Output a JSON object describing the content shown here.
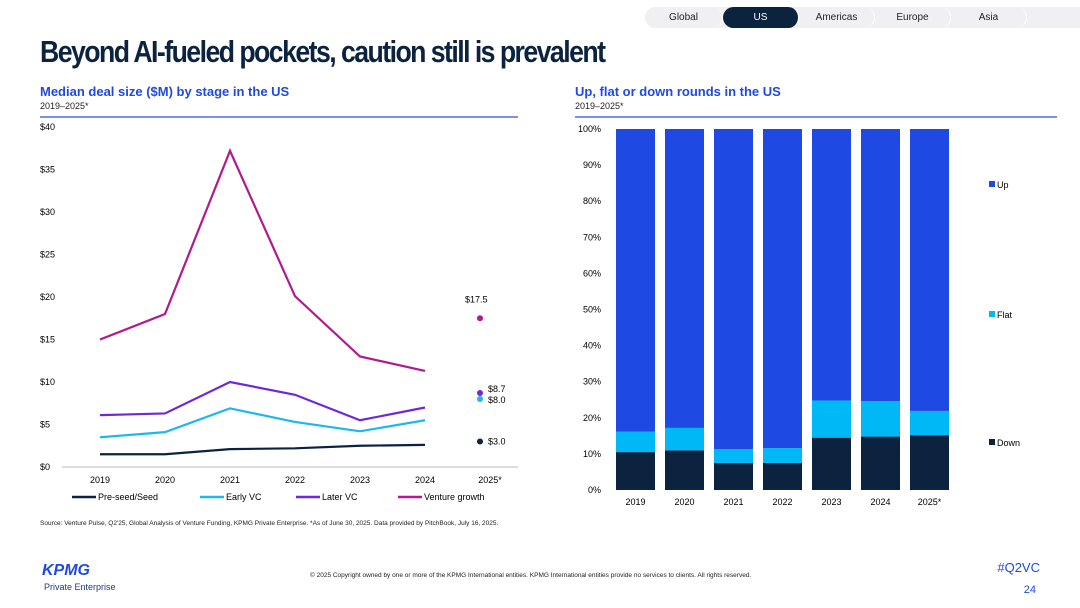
{
  "tabs": [
    {
      "label": "Global",
      "active": false
    },
    {
      "label": "US",
      "active": true
    },
    {
      "label": "Americas",
      "active": false
    },
    {
      "label": "Europe",
      "active": false
    },
    {
      "label": "Asia",
      "active": false
    }
  ],
  "title": "Beyond AI-fueled pockets, caution still is prevalent",
  "left": {
    "title": "Median deal size ($M) by stage in the US",
    "subtitle": "2019–2025*"
  },
  "right": {
    "title": "Up, flat or down rounds in the US",
    "subtitle": "2019–2025*"
  },
  "colors": {
    "preseed": "#0c2340",
    "early": "#1ab8ef",
    "later": "#6d28d9",
    "growth": "#b0198f",
    "up": "#1e49e2",
    "flat": "#00b8f5",
    "down": "#0c2340"
  },
  "chart_data": [
    {
      "type": "line",
      "title": "Median deal size ($M) by stage in the US",
      "ylim": [
        0,
        40
      ],
      "yticks": [
        "$0",
        "$5",
        "$10",
        "$15",
        "$20",
        "$25",
        "$30",
        "$35",
        "$40"
      ],
      "categories": [
        "2019",
        "2020",
        "2021",
        "2022",
        "2023",
        "2024",
        "2025*"
      ],
      "series": [
        {
          "name": "Pre-seed/Seed",
          "values": [
            1.5,
            1.5,
            2.1,
            2.2,
            2.5,
            2.6,
            3.0
          ],
          "label_2025": "$3.0"
        },
        {
          "name": "Early VC",
          "values": [
            3.5,
            4.1,
            6.9,
            5.3,
            4.2,
            5.5,
            8.0
          ],
          "label_2025": "$8.0"
        },
        {
          "name": "Later VC",
          "values": [
            6.1,
            6.3,
            10.0,
            8.5,
            5.5,
            7.0,
            8.7
          ],
          "label_2025": "$8.7"
        },
        {
          "name": "Venture growth",
          "values": [
            15,
            18,
            37.2,
            20.1,
            13,
            11.3,
            17.5
          ],
          "label_2025": "$17.5"
        }
      ]
    },
    {
      "type": "bar",
      "stacked": true,
      "title": "Up, flat or down rounds in the US",
      "ylim": [
        0,
        100
      ],
      "yticks": [
        "0%",
        "10%",
        "20%",
        "30%",
        "40%",
        "50%",
        "60%",
        "70%",
        "80%",
        "90%",
        "100%"
      ],
      "categories": [
        "2019",
        "2020",
        "2021",
        "2022",
        "2023",
        "2024",
        "2025*"
      ],
      "series": [
        {
          "name": "Down",
          "values": [
            10.5,
            11,
            7.5,
            7.5,
            14.5,
            14.8,
            15.2
          ]
        },
        {
          "name": "Flat",
          "values": [
            5.7,
            6.2,
            3.8,
            4.1,
            10.3,
            9.8,
            6.7
          ]
        },
        {
          "name": "Up",
          "values": [
            83.8,
            82.8,
            88.7,
            88.4,
            75.2,
            75.4,
            78.1
          ]
        }
      ],
      "legend": [
        "Up",
        "Flat",
        "Down"
      ]
    }
  ],
  "footer": {
    "source": "Source: Venture Pulse, Q2'25, Global Analysis of Venture Funding, KPMG Private Enterprise. *As of June 30, 2025. Data provided by PitchBook, July 16, 2025.",
    "copyright": "© 2025 Copyright owned by one or more of the KPMG International entities. KPMG International entities provide no services to clients. All rights reserved.",
    "logo": "KPMG",
    "logo_sub": "Private Enterprise",
    "hashtag": "#Q2VC",
    "page": "24"
  }
}
